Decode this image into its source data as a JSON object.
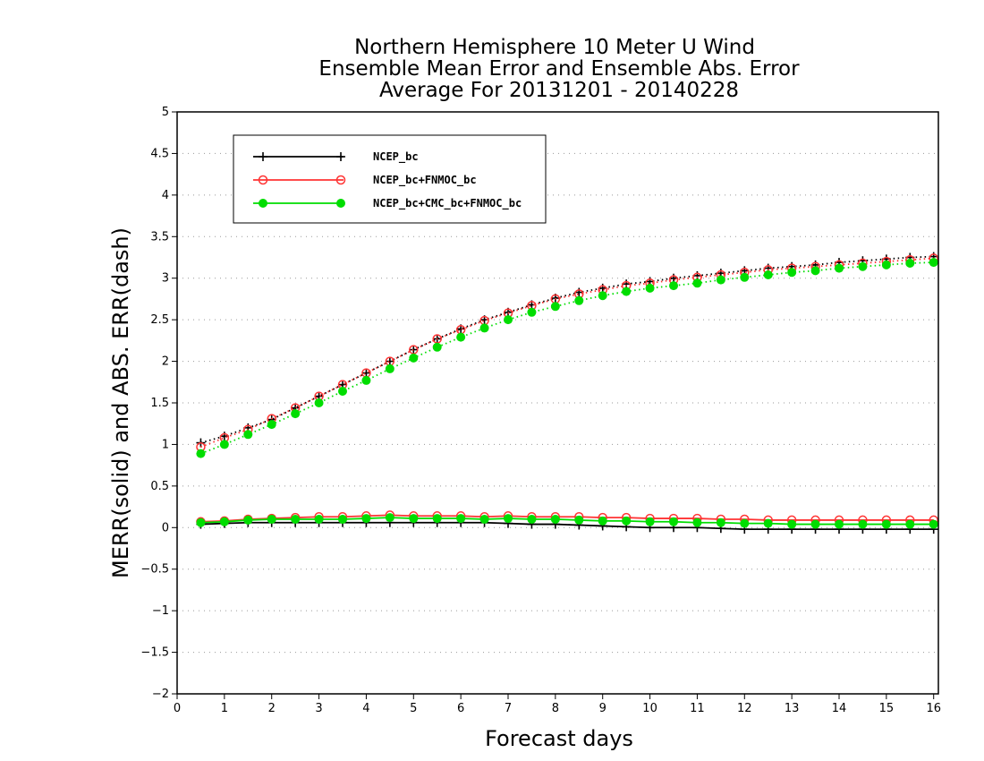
{
  "chart_data": {
    "type": "line",
    "title_lines": [
      "Northern Hemisphere 10 Meter U Wind",
      "Ensemble Mean Error and Ensemble Abs. Error",
      "Average For 20131201 - 20140228"
    ],
    "xlabel": "Forecast days",
    "ylabel": "MERR(solid) and ABS. ERR(dash)",
    "xlim": [
      0,
      16.1
    ],
    "ylim": [
      -2,
      5
    ],
    "x_ticks": [
      "0",
      "1",
      "2",
      "3",
      "4",
      "5",
      "6",
      "7",
      "8",
      "9",
      "10",
      "11",
      "12",
      "13",
      "14",
      "15",
      "16"
    ],
    "y_ticks": [
      "5",
      "4.5",
      "4",
      "3.5",
      "3",
      "2.5",
      "2",
      "1.5",
      "1",
      "0.5",
      "0",
      "-0.5",
      "-1",
      "-1.5",
      "-2"
    ],
    "grid": "horizontal dotted",
    "legend_position": "top-left",
    "x": [
      0.5,
      1,
      1.5,
      2,
      2.5,
      3,
      3.5,
      4,
      4.5,
      5,
      5.5,
      6,
      6.5,
      7,
      7.5,
      8,
      8.5,
      9,
      9.5,
      10,
      10.5,
      11,
      11.5,
      12,
      12.5,
      13,
      13.5,
      14,
      14.5,
      15,
      15.5,
      16
    ],
    "series": [
      {
        "name": "NCEP_bc",
        "color": "#000000",
        "marker": "plus",
        "abs_err": [
          1.02,
          1.1,
          1.2,
          1.3,
          1.44,
          1.58,
          1.72,
          1.86,
          2.0,
          2.14,
          2.27,
          2.39,
          2.5,
          2.59,
          2.68,
          2.76,
          2.83,
          2.88,
          2.93,
          2.96,
          3.0,
          3.03,
          3.06,
          3.09,
          3.12,
          3.14,
          3.16,
          3.19,
          3.21,
          3.23,
          3.25,
          3.26
        ],
        "mean_err": [
          0.04,
          0.05,
          0.06,
          0.06,
          0.06,
          0.06,
          0.06,
          0.06,
          0.06,
          0.06,
          0.06,
          0.06,
          0.06,
          0.05,
          0.04,
          0.04,
          0.03,
          0.02,
          0.01,
          0.0,
          0.0,
          0.0,
          -0.01,
          -0.02,
          -0.02,
          -0.02,
          -0.02,
          -0.02,
          -0.02,
          -0.02,
          -0.02,
          -0.02
        ]
      },
      {
        "name": "NCEP_bc+FNMOC_bc",
        "color": "#ff3333",
        "marker": "open-circle",
        "abs_err": [
          0.97,
          1.08,
          1.18,
          1.31,
          1.44,
          1.58,
          1.72,
          1.86,
          2.0,
          2.14,
          2.27,
          2.38,
          2.49,
          2.58,
          2.67,
          2.75,
          2.81,
          2.86,
          2.91,
          2.94,
          2.98,
          3.01,
          3.04,
          3.07,
          3.1,
          3.12,
          3.14,
          3.16,
          3.18,
          3.2,
          3.22,
          3.24
        ],
        "mean_err": [
          0.07,
          0.08,
          0.1,
          0.11,
          0.12,
          0.13,
          0.13,
          0.14,
          0.15,
          0.14,
          0.14,
          0.14,
          0.13,
          0.14,
          0.13,
          0.13,
          0.13,
          0.12,
          0.12,
          0.11,
          0.11,
          0.11,
          0.1,
          0.1,
          0.09,
          0.09,
          0.09,
          0.09,
          0.09,
          0.09,
          0.09,
          0.09
        ]
      },
      {
        "name": "NCEP_bc+CMC_bc+FNMOC_bc",
        "color": "#00dd00",
        "marker": "filled-circle",
        "abs_err": [
          0.89,
          1.0,
          1.12,
          1.24,
          1.37,
          1.5,
          1.64,
          1.77,
          1.91,
          2.04,
          2.17,
          2.29,
          2.4,
          2.5,
          2.59,
          2.66,
          2.73,
          2.79,
          2.84,
          2.88,
          2.91,
          2.94,
          2.98,
          3.01,
          3.04,
          3.07,
          3.09,
          3.12,
          3.14,
          3.16,
          3.18,
          3.19
        ],
        "mean_err": [
          0.06,
          0.07,
          0.09,
          0.1,
          0.1,
          0.1,
          0.1,
          0.11,
          0.12,
          0.11,
          0.11,
          0.11,
          0.1,
          0.11,
          0.1,
          0.1,
          0.09,
          0.08,
          0.08,
          0.07,
          0.07,
          0.06,
          0.06,
          0.05,
          0.05,
          0.04,
          0.04,
          0.04,
          0.04,
          0.04,
          0.04,
          0.04
        ]
      }
    ]
  }
}
